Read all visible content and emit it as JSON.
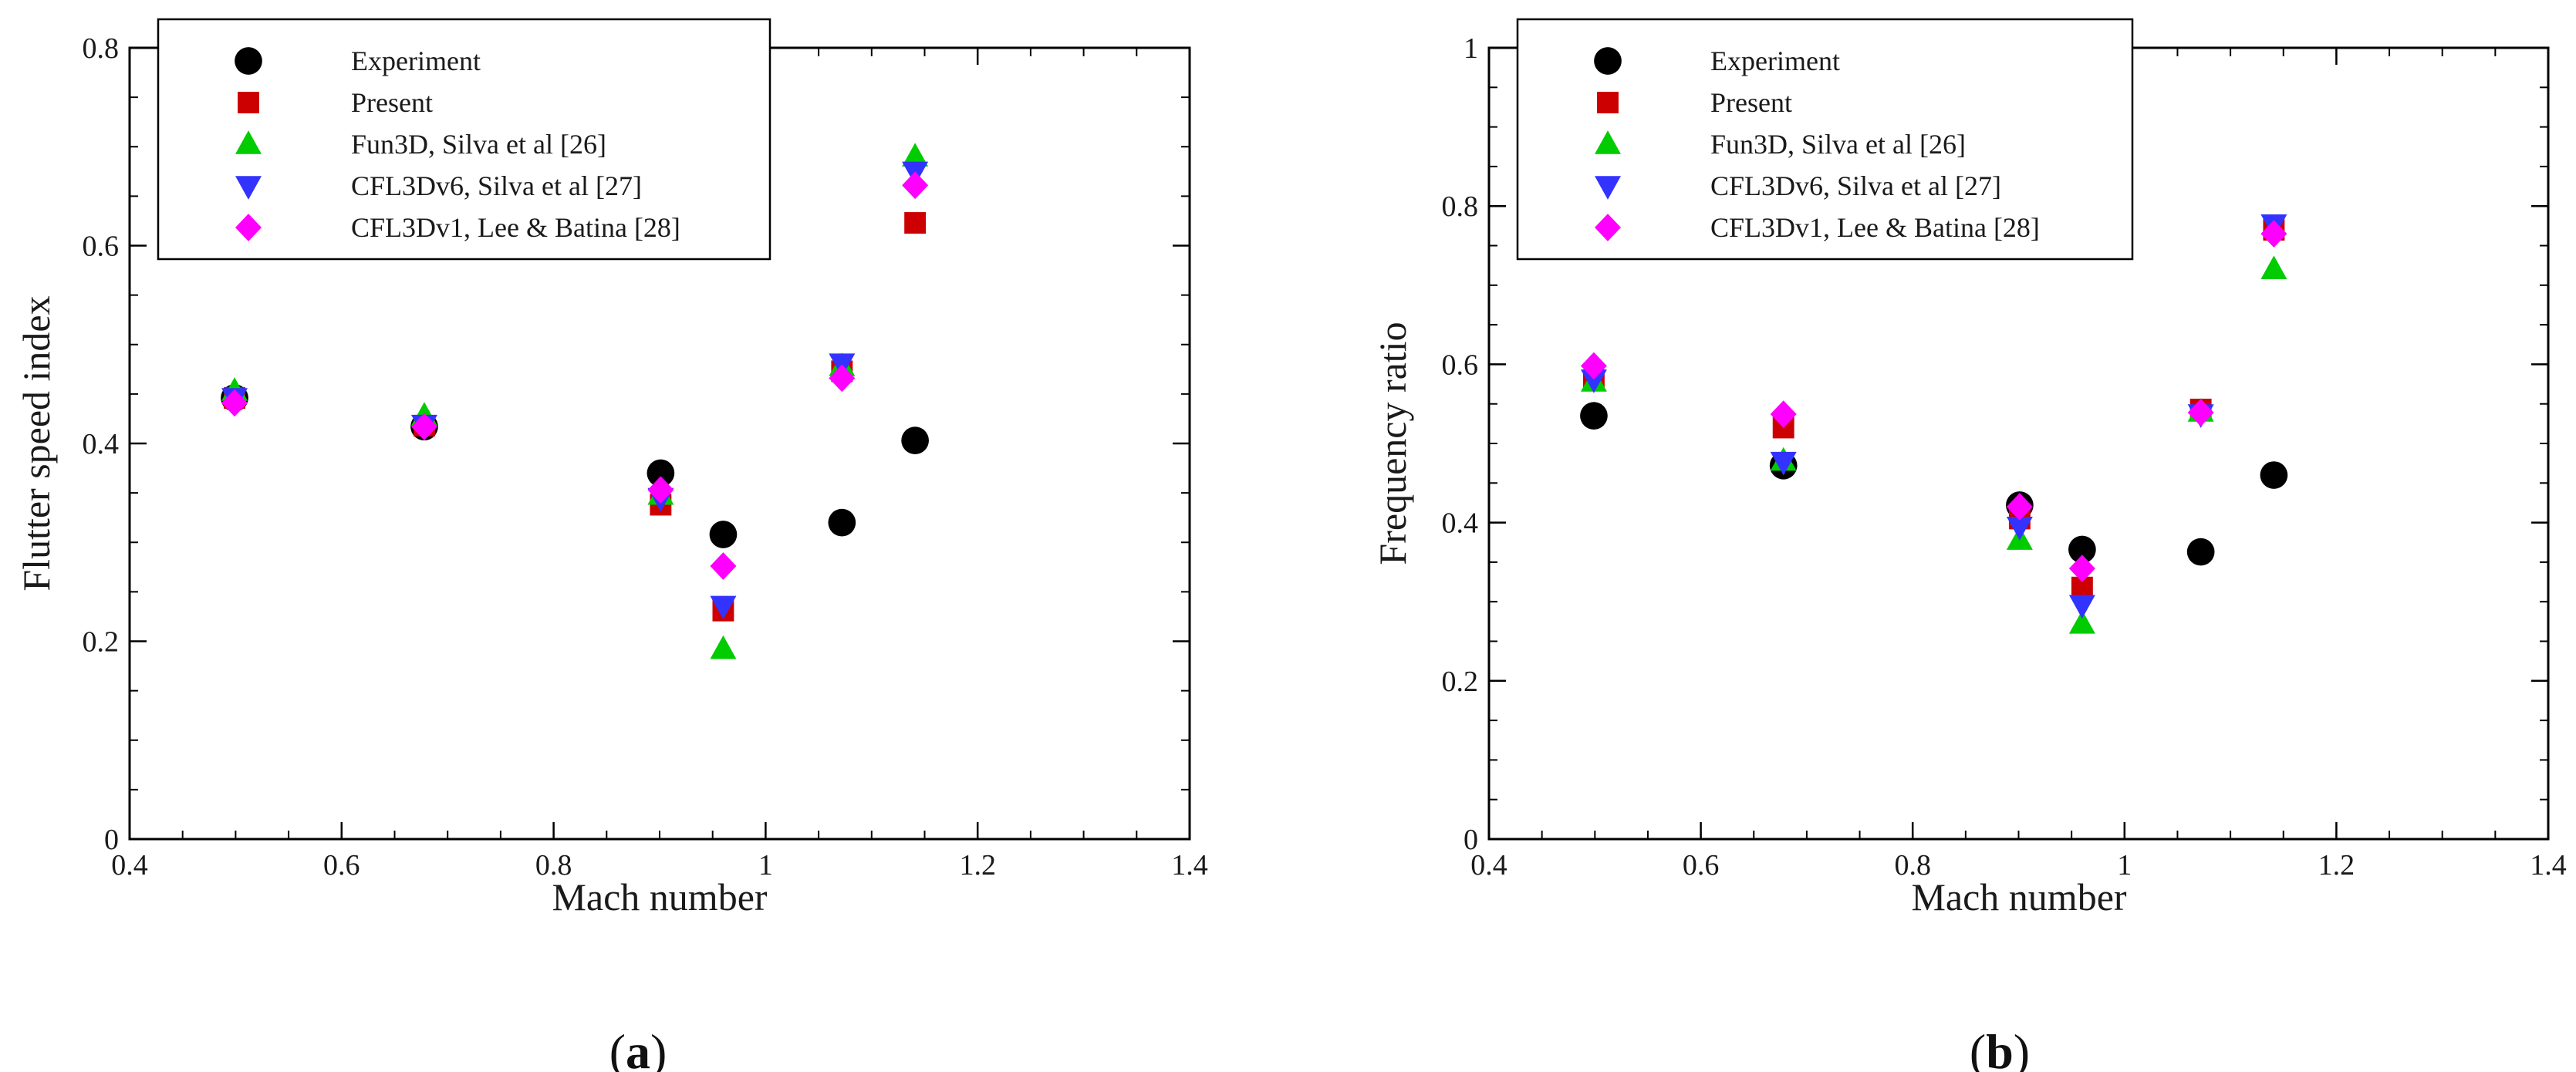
{
  "chart_data": [
    {
      "type": "scatter",
      "panel_label": [
        "(",
        "a",
        ")"
      ],
      "xlabel": "Mach number",
      "ylabel": "Flutter speed index",
      "xlim": [
        0.4,
        1.4
      ],
      "ylim": [
        0,
        0.8
      ],
      "xticks": [
        0.4,
        0.6,
        0.8,
        1,
        1.2,
        1.4
      ],
      "xtick_labels": [
        "0.4",
        "0.6",
        "0.8",
        "1",
        "1.2",
        "1.4"
      ],
      "yticks": [
        0,
        0.2,
        0.4,
        0.6,
        0.8
      ],
      "ytick_labels": [
        "0",
        "0.2",
        "0.4",
        "0.6",
        "0.8"
      ],
      "legend_position": "top-left",
      "series": [
        {
          "name": "Experiment",
          "marker": "circle",
          "color": "#000000",
          "x": [
            0.499,
            0.678,
            0.901,
            0.96,
            1.072,
            1.141
          ],
          "y": [
            0.446,
            0.417,
            0.37,
            0.308,
            0.32,
            0.403
          ]
        },
        {
          "name": "Present",
          "marker": "square",
          "color": "#cc0000",
          "x": [
            0.499,
            0.678,
            0.901,
            0.96,
            1.072,
            1.141
          ],
          "y": [
            0.446,
            0.418,
            0.338,
            0.231,
            0.473,
            0.623
          ]
        },
        {
          "name": "Fun3D, Silva et al [26]",
          "marker": "triangle-up",
          "color": "#00cc00",
          "x": [
            0.499,
            0.678,
            0.901,
            0.96,
            1.072,
            1.141
          ],
          "y": [
            0.453,
            0.428,
            0.348,
            0.192,
            0.478,
            0.69
          ]
        },
        {
          "name": "CFL3Dv6, Silva et al [27]",
          "marker": "triangle-down",
          "color": "#3333ff",
          "x": [
            0.499,
            0.678,
            0.901,
            0.96,
            1.072,
            1.141
          ],
          "y": [
            0.446,
            0.419,
            0.345,
            0.236,
            0.481,
            0.675
          ]
        },
        {
          "name": "CFL3Dv1, Lee & Batina [28]",
          "marker": "diamond",
          "color": "#ff00ff",
          "x": [
            0.499,
            0.678,
            0.901,
            0.96,
            1.072,
            1.141
          ],
          "y": [
            0.441,
            0.417,
            0.353,
            0.276,
            0.466,
            0.661
          ]
        }
      ]
    },
    {
      "type": "scatter",
      "panel_label": [
        "(",
        "b",
        ")"
      ],
      "xlabel": "Mach number",
      "ylabel": "Frequency ratio",
      "xlim": [
        0.4,
        1.4
      ],
      "ylim": [
        0,
        1
      ],
      "xticks": [
        0.4,
        0.6,
        0.8,
        1,
        1.2,
        1.4
      ],
      "xtick_labels": [
        "0.4",
        "0.6",
        "0.8",
        "1",
        "1.2",
        "1.4"
      ],
      "yticks": [
        0,
        0.2,
        0.4,
        0.6,
        0.8,
        1
      ],
      "ytick_labels": [
        "0",
        "0.2",
        "0.4",
        "0.6",
        "0.8",
        "1"
      ],
      "legend_position": "top-left",
      "series": [
        {
          "name": "Experiment",
          "marker": "circle",
          "color": "#000000",
          "x": [
            0.499,
            0.678,
            0.901,
            0.96,
            1.072,
            1.141
          ],
          "y": [
            0.535,
            0.472,
            0.422,
            0.366,
            0.363,
            0.46
          ]
        },
        {
          "name": "Present",
          "marker": "square",
          "color": "#cc0000",
          "x": [
            0.499,
            0.678,
            0.901,
            0.96,
            1.072,
            1.141
          ],
          "y": [
            0.58,
            0.52,
            0.405,
            0.318,
            0.543,
            0.77
          ]
        },
        {
          "name": "Fun3D, Silva et al [26]",
          "marker": "triangle-up",
          "color": "#00cc00",
          "x": [
            0.499,
            0.678,
            0.901,
            0.96,
            1.072,
            1.141
          ],
          "y": [
            0.578,
            0.478,
            0.378,
            0.272,
            0.54,
            0.72
          ]
        },
        {
          "name": "CFL3Dv6, Silva et al [27]",
          "marker": "triangle-down",
          "color": "#3333ff",
          "x": [
            0.499,
            0.678,
            0.901,
            0.96,
            1.072,
            1.141
          ],
          "y": [
            0.581,
            0.477,
            0.395,
            0.296,
            0.537,
            0.777
          ]
        },
        {
          "name": "CFL3Dv1, Lee & Batina [28]",
          "marker": "diamond",
          "color": "#ff00ff",
          "x": [
            0.499,
            0.678,
            0.901,
            0.96,
            1.072,
            1.141
          ],
          "y": [
            0.598,
            0.537,
            0.42,
            0.342,
            0.539,
            0.765
          ]
        }
      ]
    }
  ]
}
